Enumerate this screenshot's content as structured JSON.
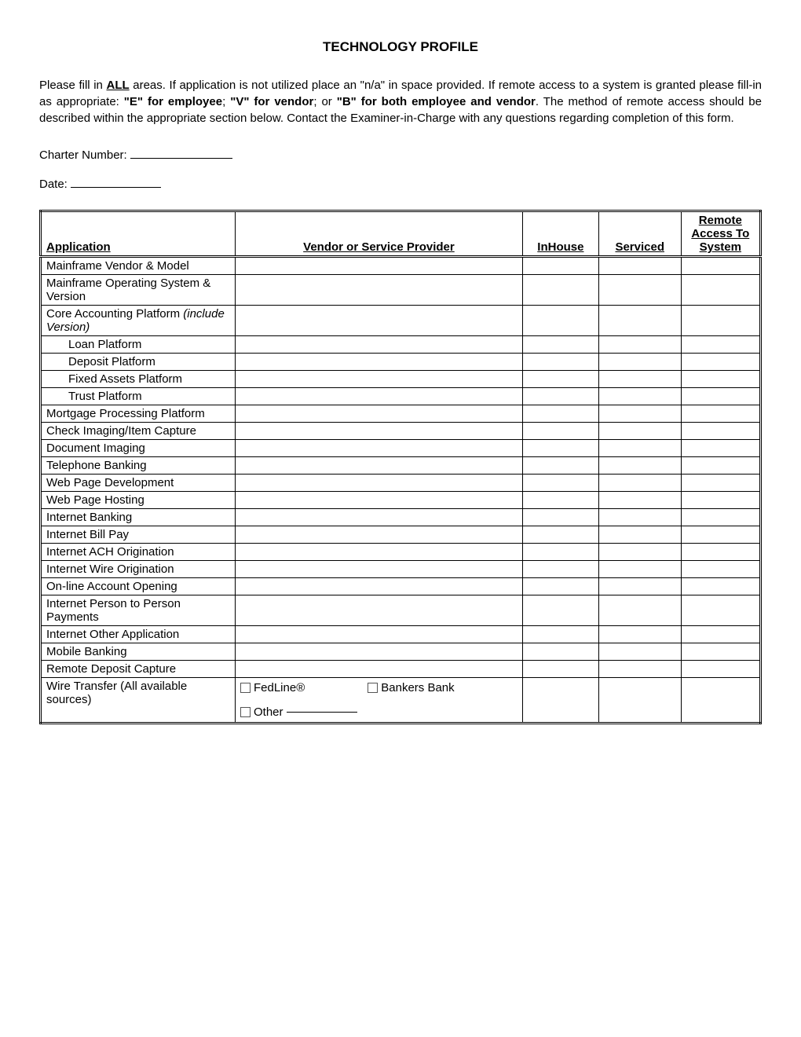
{
  "title": "TECHNOLOGY PROFILE",
  "intro": {
    "pre_all": "Please fill in ",
    "all": "ALL",
    "after_all": " areas.  If application is not utilized place an \"n/a\" in space provided.  If remote access to a system is granted please fill-in as appropriate:  ",
    "e": "\"E\" for employee",
    "sep1": "; ",
    "v": "\"V\" for vendor",
    "sep2": "; or ",
    "b": "\"B\" for both employee and vendor",
    "after_b": ".  The method of remote access should be described within the appropriate section below.  Contact the Examiner-in-Charge with any questions regarding completion of this form."
  },
  "fields": {
    "charter_label": "Charter Number:",
    "date_label": "Date:"
  },
  "headers": {
    "application": "Application",
    "vendor": "Vendor or Service Provider",
    "inhouse": "InHouse",
    "serviced": "Serviced",
    "remote": "Remote Access To System"
  },
  "rows": [
    {
      "label": "Mainframe Vendor & Model"
    },
    {
      "label": "Mainframe Operating System & Version"
    },
    {
      "label_pre": "Core Accounting Platform ",
      "label_italic": "(include Version)"
    },
    {
      "label": "Loan Platform",
      "indent": true
    },
    {
      "label": "Deposit Platform",
      "indent": true
    },
    {
      "label": "Fixed Assets Platform",
      "indent": true
    },
    {
      "label": "Trust Platform",
      "indent": true
    },
    {
      "label": "Mortgage Processing Platform"
    },
    {
      "label": "Check Imaging/Item Capture"
    },
    {
      "label": "Document Imaging"
    },
    {
      "label": "Telephone Banking"
    },
    {
      "label": "Web Page Development"
    },
    {
      "label": "Web Page Hosting"
    },
    {
      "label": "Internet Banking"
    },
    {
      "label": "Internet Bill Pay"
    },
    {
      "label": "Internet ACH Origination"
    },
    {
      "label": "Internet Wire Origination"
    },
    {
      "label": "On-line Account Opening"
    },
    {
      "label": "Internet Person to Person Payments"
    },
    {
      "label": "Internet Other Application"
    },
    {
      "label": "Mobile Banking"
    },
    {
      "label": "Remote Deposit Capture"
    }
  ],
  "wire_row": {
    "label": "Wire Transfer (All available sources)",
    "opt1": "FedLine®",
    "opt2": "Bankers Bank",
    "opt3": "Other"
  }
}
